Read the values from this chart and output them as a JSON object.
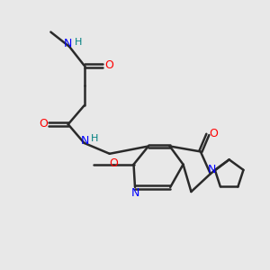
{
  "background_color": "#e8e8e8",
  "bond_color": "#2a2a2a",
  "atom_colors": {
    "N": "#0000ff",
    "O": "#ff0000",
    "H": "#008080",
    "C": "#2a2a2a"
  },
  "figsize": [
    3.0,
    3.0
  ],
  "dpi": 100
}
